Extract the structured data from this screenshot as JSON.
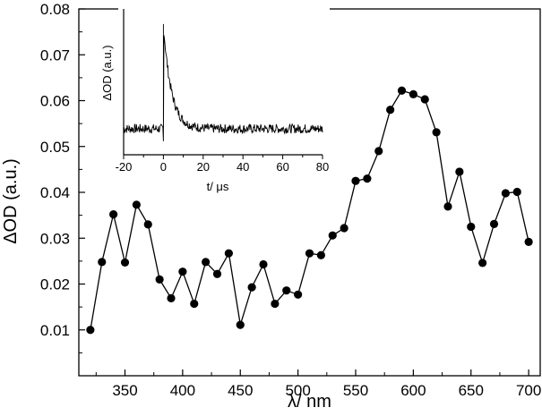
{
  "chart_data": [
    {
      "type": "line",
      "markers": "filled-circle",
      "x": [
        320,
        330,
        340,
        350,
        360,
        370,
        380,
        390,
        400,
        410,
        420,
        430,
        440,
        450,
        460,
        470,
        480,
        490,
        500,
        510,
        520,
        530,
        540,
        550,
        560,
        570,
        580,
        590,
        600,
        610,
        620,
        630,
        640,
        650,
        660,
        670,
        680,
        690,
        700
      ],
      "values": [
        0.01,
        0.0248,
        0.0352,
        0.0247,
        0.0373,
        0.033,
        0.021,
        0.0169,
        0.0227,
        0.0157,
        0.0248,
        0.0222,
        0.0267,
        0.0111,
        0.0193,
        0.0243,
        0.0157,
        0.0186,
        0.0177,
        0.0267,
        0.0263,
        0.0306,
        0.0322,
        0.0425,
        0.043,
        0.049,
        0.058,
        0.0622,
        0.0614,
        0.0603,
        0.0531,
        0.0369,
        0.0445,
        0.0325,
        0.0246,
        0.0331,
        0.0398,
        0.0401,
        0.0292
      ],
      "xlabel": "λ/ nm",
      "ylabel": "ΔOD (a.u.)",
      "xlim": [
        310,
        710
      ],
      "ylim": [
        0.0,
        0.08
      ],
      "xticks": [
        350,
        400,
        450,
        500,
        550,
        600,
        650,
        700
      ],
      "xtick_labels": [
        "350",
        "400",
        "450",
        "500",
        "550",
        "600",
        "650",
        "700"
      ],
      "yticks": [
        0.01,
        0.02,
        0.03,
        0.04,
        0.05,
        0.06,
        0.07,
        0.08
      ],
      "ytick_labels": [
        "0.01",
        "0.02",
        "0.03",
        "0.04",
        "0.05",
        "0.06",
        "0.07",
        "0.08"
      ],
      "grid": false,
      "color": "#000000"
    },
    {
      "type": "line",
      "role": "inset",
      "description_kinetics": {
        "baseline": 0.0,
        "t0": 0.0,
        "peak": 1.0,
        "decay_time": 4.0
      },
      "xlabel": "t/ μs",
      "ylabel": "ΔOD (a.u.)",
      "xlim": [
        -20,
        80
      ],
      "ylim": [
        -0.25,
        1.15
      ],
      "xticks": [
        -20,
        0,
        20,
        40,
        60,
        80
      ],
      "xtick_labels": [
        "-20",
        "0",
        "20",
        "40",
        "60",
        "80"
      ],
      "grid": false,
      "color": "#000000"
    }
  ]
}
